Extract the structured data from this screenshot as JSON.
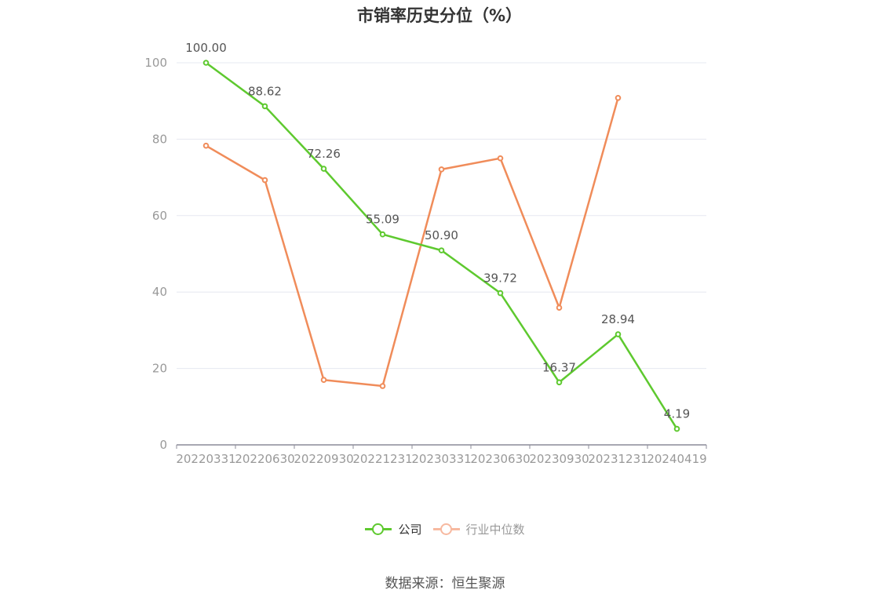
{
  "chart_data": {
    "type": "line",
    "title": "市销率历史分位（%）",
    "categories": [
      "20220331",
      "20220630",
      "20220930",
      "20221231",
      "20230331",
      "20230630",
      "20230930",
      "20231231",
      "20240419"
    ],
    "ylim": [
      0,
      100
    ],
    "yticks": [
      0,
      20,
      40,
      60,
      80,
      100
    ],
    "grid": true,
    "legend_position": "bottom",
    "series": [
      {
        "name": "公司",
        "color": "#5ec92f",
        "values": [
          100.0,
          88.62,
          72.26,
          55.09,
          50.9,
          39.72,
          16.37,
          28.94,
          4.19
        ],
        "labels": [
          "100.00",
          "88.62",
          "72.26",
          "55.09",
          "50.90",
          "39.72",
          "16.37",
          "28.94",
          "4.19"
        ]
      },
      {
        "name": "行业中位数",
        "color": "#f08c5a",
        "values": [
          78.3,
          69.3,
          17.0,
          15.4,
          72.1,
          75.0,
          35.9,
          90.8,
          null
        ]
      }
    ]
  },
  "source": "数据来源：恒生聚源"
}
